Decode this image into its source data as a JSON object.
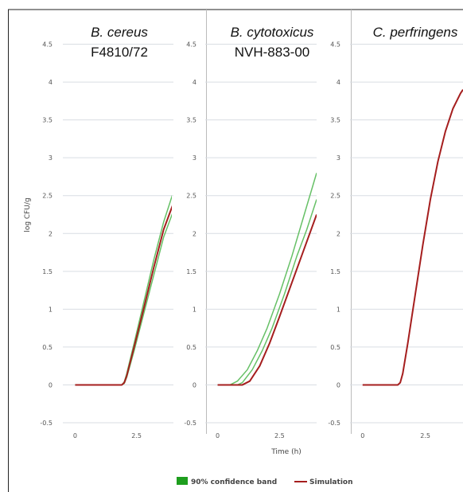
{
  "chart_data": [
    {
      "type": "line",
      "title_line1": "B. cereus",
      "title_line2": "F4810/72",
      "ylabel": "log CFU/g",
      "xlabel": "",
      "x_ticks": [
        "0",
        "2.5"
      ],
      "y_ticks": [
        "-0.5",
        "0",
        "0.5",
        "1",
        "1.5",
        "2",
        "2.5",
        "3",
        "3.5",
        "4",
        "4.5"
      ],
      "xlim": [
        -0.5,
        4
      ],
      "ylim": [
        -0.5,
        5
      ],
      "series": [
        {
          "x": [
            0,
            1.9,
            2.0,
            2.1,
            2.4,
            2.8,
            3.2,
            3.6,
            4.0
          ],
          "y": [
            0,
            0,
            0.04,
            0.15,
            0.55,
            1.1,
            1.65,
            2.15,
            2.55
          ]
        },
        {
          "x": [
            0,
            1.9,
            2.0,
            2.1,
            2.4,
            2.8,
            3.2,
            3.6,
            4.0
          ],
          "y": [
            0,
            0,
            0.02,
            0.1,
            0.45,
            0.95,
            1.45,
            1.95,
            2.3
          ]
        },
        {
          "x": [
            0,
            1.9,
            2.0,
            2.1,
            2.4,
            2.8,
            3.2,
            3.6,
            4.0
          ],
          "y": [
            0,
            0,
            0.03,
            0.12,
            0.5,
            1.02,
            1.55,
            2.05,
            2.4
          ]
        }
      ]
    },
    {
      "type": "line",
      "title_line1": "B. cytotoxicus",
      "title_line2": "NVH-883-00",
      "ylabel": "",
      "xlabel": "Time (h)",
      "x_ticks": [
        "0",
        "2.5"
      ],
      "y_ticks": [
        "-0.5",
        "0",
        "0.5",
        "1",
        "1.5",
        "2",
        "2.5",
        "3",
        "3.5",
        "4",
        "4.5"
      ],
      "xlim": [
        -0.5,
        4
      ],
      "ylim": [
        -0.5,
        5
      ],
      "series": [
        {
          "x": [
            0,
            0.5,
            0.8,
            1.2,
            1.6,
            2.0,
            2.5,
            3.0,
            3.5,
            4.0
          ],
          "y": [
            0,
            0,
            0.05,
            0.2,
            0.45,
            0.75,
            1.2,
            1.7,
            2.25,
            2.8
          ]
        },
        {
          "x": [
            0,
            0.8,
            1.0,
            1.4,
            1.8,
            2.2,
            2.7,
            3.2,
            3.6,
            4.0
          ],
          "y": [
            0,
            0,
            0.03,
            0.2,
            0.45,
            0.75,
            1.2,
            1.7,
            2.05,
            2.45
          ]
        },
        {
          "x": [
            0,
            1.0,
            1.3,
            1.7,
            2.1,
            2.5,
            3.0,
            3.5,
            4.0
          ],
          "y": [
            0,
            0,
            0.05,
            0.25,
            0.55,
            0.9,
            1.35,
            1.8,
            2.25
          ]
        }
      ]
    },
    {
      "type": "line",
      "title_line1": "C. perfringens",
      "title_line2": "",
      "ylabel": "",
      "xlabel": "",
      "x_ticks": [
        "0",
        "2.5"
      ],
      "y_ticks": [
        "-0.5",
        "0",
        "0.5",
        "1",
        "1.5",
        "2",
        "2.5",
        "3",
        "3.5",
        "4",
        "4.5"
      ],
      "xlim": [
        -0.5,
        4
      ],
      "ylim": [
        -0.5,
        5
      ],
      "series": [
        {
          "x": [
            0,
            1.4,
            1.5,
            1.6,
            1.8,
            2.1,
            2.4,
            2.7,
            3.0,
            3.3,
            3.6,
            3.9,
            4.0
          ],
          "y": [
            0,
            0,
            0.03,
            0.15,
            0.55,
            1.2,
            1.85,
            2.45,
            2.95,
            3.35,
            3.65,
            3.85,
            3.9
          ]
        }
      ]
    }
  ],
  "legend": {
    "band_label": "90% confidence band",
    "line_label": "Simulation",
    "band_color": "#1e9e1e",
    "line_color": "#a51e1e"
  },
  "colors": {
    "band_line": "#66c066",
    "sim_line": "#a51e1e",
    "grid": "#d9dde3"
  }
}
